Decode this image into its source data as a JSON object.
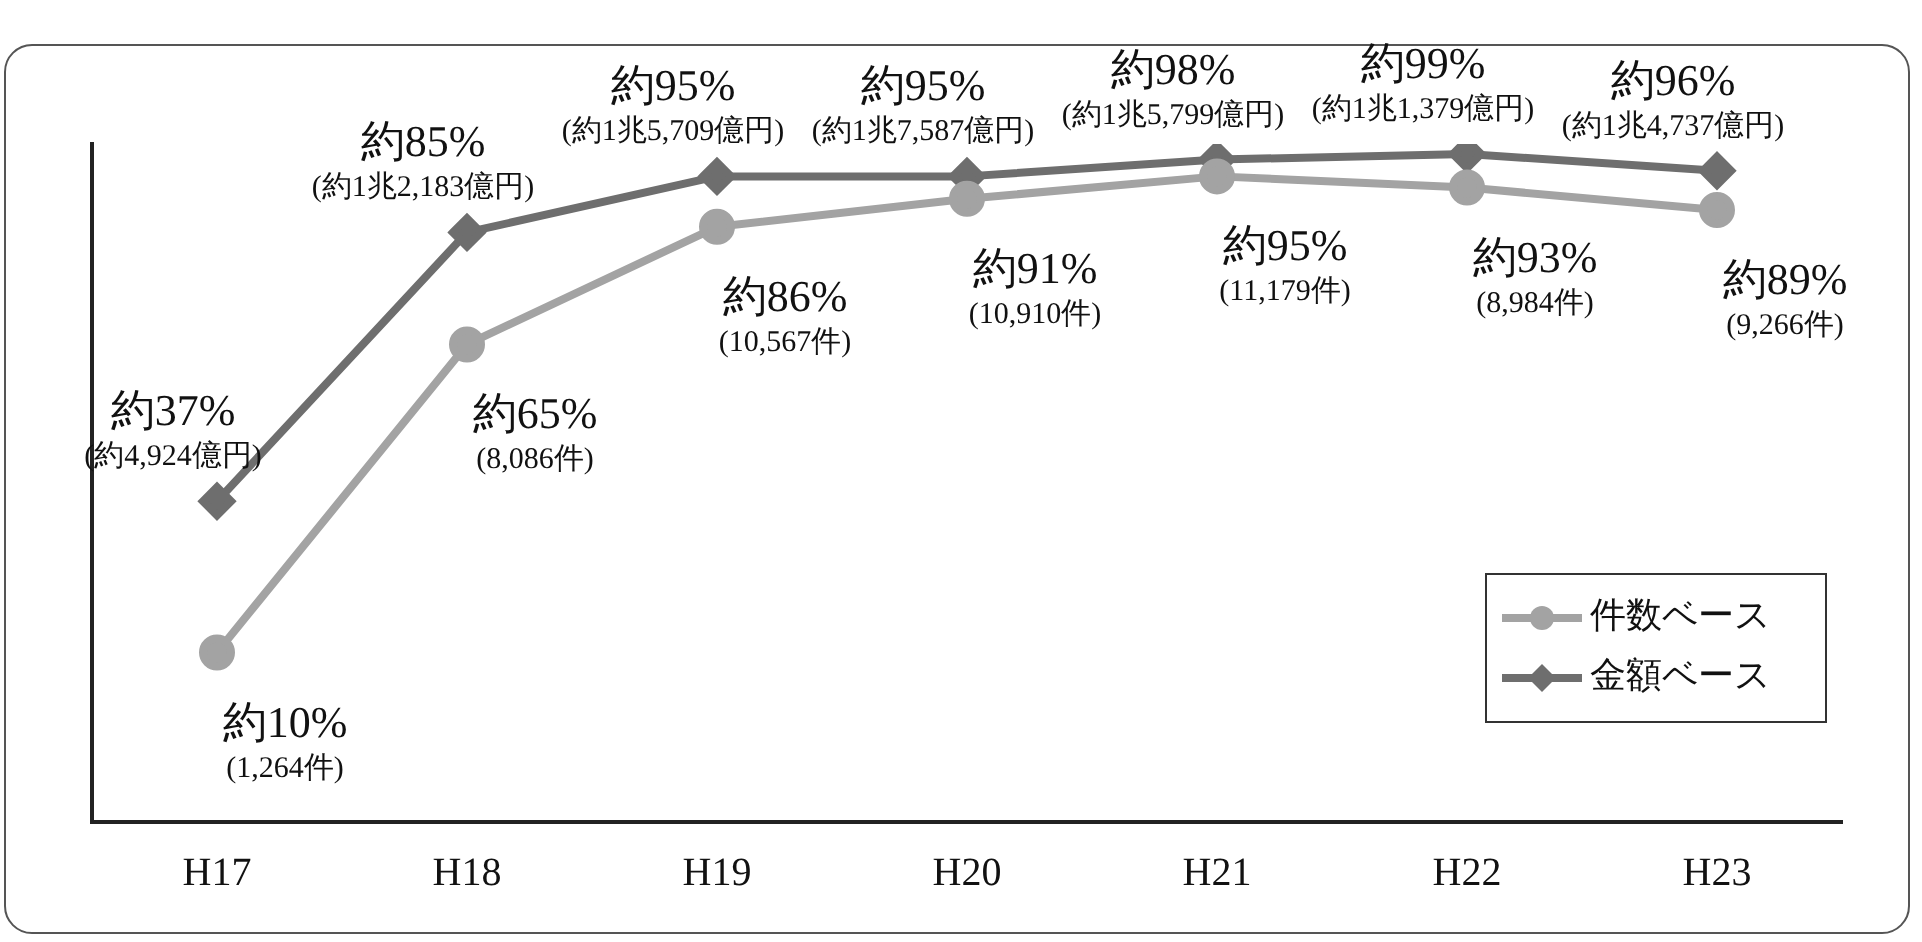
{
  "chart_data": {
    "type": "line",
    "categories": [
      "H17",
      "H18",
      "H19",
      "H20",
      "H21",
      "H22",
      "H23"
    ],
    "series": [
      {
        "name": "件数ベース",
        "color": "#a3a3a3",
        "marker": "circle",
        "values": [
          10,
          65,
          86,
          91,
          95,
          93,
          89
        ],
        "value_labels": [
          "約10%\n(1,264件)",
          "約65%\n(8,086件)",
          "約86%\n(10,567件)",
          "約91%\n(10,910件)",
          "約95%\n(11,179件)",
          "約93%\n(8,984件)",
          "約89%\n(9,266件)"
        ]
      },
      {
        "name": "金額ベース",
        "color": "#6e6e6e",
        "marker": "diamond",
        "values": [
          37,
          85,
          95,
          95,
          98,
          99,
          96
        ],
        "value_labels": [
          "約37%\n(約4,924億円)",
          "約85%\n(約1兆2,183億円)",
          "約95%\n(約1兆5,709億円)",
          "約95%\n(約1兆7,587億円)",
          "約98%\n(約1兆5,799億円)",
          "約99%\n(約1兆1,379億円)",
          "約96%\n(約1兆4,737億円)"
        ]
      }
    ],
    "relative": false,
    "legend": "bottom right",
    "grid": false
  }
}
